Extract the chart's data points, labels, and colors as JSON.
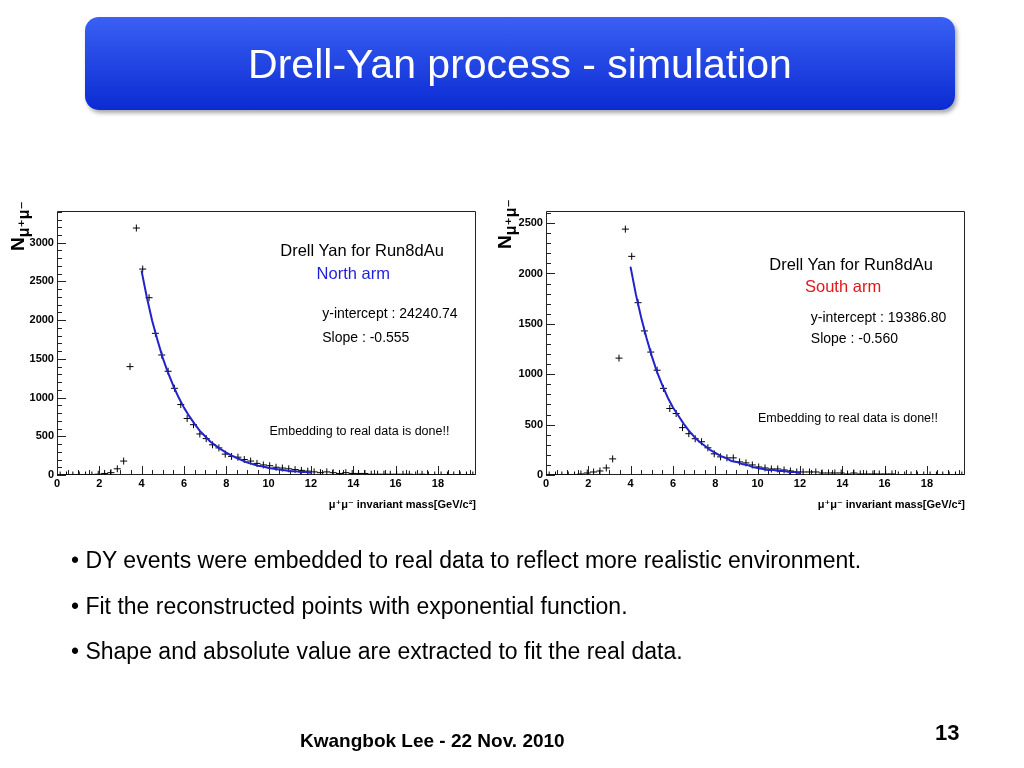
{
  "chart_data": [
    {
      "type": "other",
      "title": "Drell-Yan process - simulation"
    },
    {
      "type": "scatter",
      "title": "Drell Yan for Run8dAu",
      "subtitle": "North arm",
      "xlabel": "μ⁺μ⁻ invariant mass[GeV/c²]",
      "ylabel": "N$_{μ⁺μ⁻}$",
      "marker": "cross",
      "annotations": [
        "y-intercept : 24240.74",
        "Slope : -0.555",
        "Embedding to real data is done!!"
      ],
      "xlim": [
        0,
        19.8
      ],
      "ylim": [
        0,
        3410
      ],
      "xticks": [
        0,
        {
          "value": 0.5,
          "label": null
        },
        {
          "value": 1,
          "label": null
        },
        {
          "value": 1.5,
          "label": null
        },
        2,
        {
          "value": 2.5,
          "label": null
        },
        {
          "value": 3,
          "label": null
        },
        {
          "value": 3.5,
          "label": null
        },
        4,
        {
          "value": 4.5,
          "label": null
        },
        {
          "value": 5,
          "label": null
        },
        {
          "value": 5.5,
          "label": null
        },
        6,
        {
          "value": 6.5,
          "label": null
        },
        {
          "value": 7,
          "label": null
        },
        {
          "value": 7.5,
          "label": null
        },
        8,
        {
          "value": 8.5,
          "label": null
        },
        {
          "value": 9,
          "label": null
        },
        {
          "value": 9.5,
          "label": null
        },
        10,
        {
          "value": 10.5,
          "label": null
        },
        {
          "value": 11,
          "label": null
        },
        {
          "value": 11.5,
          "label": null
        },
        12,
        {
          "value": 12.5,
          "label": null
        },
        {
          "value": 13,
          "label": null
        },
        {
          "value": 13.5,
          "label": null
        },
        14,
        {
          "value": 14.5,
          "label": null
        },
        {
          "value": 15,
          "label": null
        },
        {
          "value": 15.5,
          "label": null
        },
        16,
        {
          "value": 16.5,
          "label": null
        },
        {
          "value": 17,
          "label": null
        },
        {
          "value": 17.5,
          "label": null
        },
        18,
        {
          "value": 18.5,
          "label": null
        },
        {
          "value": 19,
          "label": null
        },
        {
          "value": 19.5,
          "label": null
        }
      ],
      "yticks": [
        0,
        {
          "value": 100,
          "label": null
        },
        {
          "value": 200,
          "label": null
        },
        {
          "value": 300,
          "label": null
        },
        {
          "value": 400,
          "label": null
        },
        500,
        {
          "value": 600,
          "label": null
        },
        {
          "value": 700,
          "label": null
        },
        {
          "value": 800,
          "label": null
        },
        {
          "value": 900,
          "label": null
        },
        1000,
        {
          "value": 1100,
          "label": null
        },
        {
          "value": 1200,
          "label": null
        },
        {
          "value": 1300,
          "label": null
        },
        {
          "value": 1400,
          "label": null
        },
        1500,
        {
          "value": 1600,
          "label": null
        },
        {
          "value": 1700,
          "label": null
        },
        {
          "value": 1800,
          "label": null
        },
        {
          "value": 1900,
          "label": null
        },
        2000,
        {
          "value": 2100,
          "label": null
        },
        {
          "value": 2200,
          "label": null
        },
        {
          "value": 2300,
          "label": null
        },
        {
          "value": 2400,
          "label": null
        },
        2500,
        {
          "value": 2600,
          "label": null
        },
        {
          "value": 2700,
          "label": null
        },
        {
          "value": 2800,
          "label": null
        },
        {
          "value": 2900,
          "label": null
        },
        3000,
        {
          "value": 3100,
          "label": null
        },
        {
          "value": 3200,
          "label": null
        },
        {
          "value": 3300,
          "label": null
        },
        {
          "value": 3400,
          "label": null
        }
      ],
      "series": [
        {
          "color": "#000000",
          "x": [
            0.15,
            0.45,
            0.75,
            1.05,
            1.35,
            1.65,
            1.95,
            2.25,
            2.55,
            2.85,
            3.15,
            3.45,
            3.75,
            4.05,
            4.35,
            4.65,
            4.95,
            5.25,
            5.55,
            5.85,
            6.15,
            6.45,
            6.75,
            7.05,
            7.35,
            7.65,
            7.95,
            8.25,
            8.55,
            8.85,
            9.15,
            9.45,
            9.75,
            10.05,
            10.35,
            10.65,
            10.95,
            11.25,
            11.55,
            11.85,
            12.15,
            12.45,
            12.75,
            13.05,
            13.35,
            13.65,
            13.95,
            14.25,
            14.55,
            14.85,
            15.15,
            15.45,
            15.75,
            16.05,
            16.35,
            16.65,
            16.95,
            17.25,
            17.55,
            17.85,
            18.15,
            18.45,
            18.75,
            19.05,
            19.35,
            19.65
          ],
          "values": [
            0,
            0,
            0,
            0,
            0,
            0,
            10,
            20,
            30,
            80,
            180,
            1400,
            3190,
            2660,
            2290,
            1830,
            1550,
            1340,
            1120,
            910,
            730,
            650,
            530,
            470,
            390,
            350,
            270,
            240,
            230,
            200,
            180,
            150,
            130,
            120,
            100,
            90,
            80,
            70,
            60,
            50,
            40,
            30,
            40,
            30,
            20,
            30,
            20,
            20,
            20,
            10,
            10,
            10,
            10,
            10,
            10,
            10,
            0,
            10,
            0,
            0,
            0,
            0,
            0,
            0,
            0,
            0
          ]
        },
        {
          "type": "line",
          "color": "#2222cc",
          "marker": "none",
          "x": [
            4,
            4.25,
            4.5,
            4.75,
            5,
            5.25,
            5.5,
            5.75,
            6,
            6.25,
            6.5,
            6.75,
            7,
            7.25,
            7.5,
            7.75,
            8,
            8.25,
            8.5,
            8.75,
            9,
            9.25,
            9.5,
            9.75,
            10,
            10.25,
            10.5,
            10.75,
            11,
            11.25,
            11.5,
            11.75,
            12
          ],
          "values": [
            2630,
            2290,
            1990,
            1740,
            1510,
            1320,
            1150,
            1000,
            870,
            760,
            660,
            570,
            500,
            430,
            380,
            330,
            290,
            250,
            220,
            190,
            160,
            140,
            120,
            110,
            90,
            80,
            70,
            60,
            50,
            50,
            40,
            40,
            30
          ]
        }
      ]
    },
    {
      "type": "scatter",
      "title": "Drell Yan for Run8dAu",
      "subtitle": "South arm",
      "xlabel": "μ⁺μ⁻ invariant mass[GeV/c²]",
      "ylabel": "N$_{μ⁺μ⁻}$",
      "marker": "cross",
      "annotations": [
        "y-intercept : 19386.80",
        "Slope : -0.560",
        "Embedding to real data is done!!"
      ],
      "xlim": [
        0,
        19.8
      ],
      "ylim": [
        0,
        2620
      ],
      "xticks": [
        0,
        {
          "value": 0.5,
          "label": null
        },
        {
          "value": 1,
          "label": null
        },
        {
          "value": 1.5,
          "label": null
        },
        2,
        {
          "value": 2.5,
          "label": null
        },
        {
          "value": 3,
          "label": null
        },
        {
          "value": 3.5,
          "label": null
        },
        4,
        {
          "value": 4.5,
          "label": null
        },
        {
          "value": 5,
          "label": null
        },
        {
          "value": 5.5,
          "label": null
        },
        6,
        {
          "value": 6.5,
          "label": null
        },
        {
          "value": 7,
          "label": null
        },
        {
          "value": 7.5,
          "label": null
        },
        8,
        {
          "value": 8.5,
          "label": null
        },
        {
          "value": 9,
          "label": null
        },
        {
          "value": 9.5,
          "label": null
        },
        10,
        {
          "value": 10.5,
          "label": null
        },
        {
          "value": 11,
          "label": null
        },
        {
          "value": 11.5,
          "label": null
        },
        12,
        {
          "value": 12.5,
          "label": null
        },
        {
          "value": 13,
          "label": null
        },
        {
          "value": 13.5,
          "label": null
        },
        14,
        {
          "value": 14.5,
          "label": null
        },
        {
          "value": 15,
          "label": null
        },
        {
          "value": 15.5,
          "label": null
        },
        16,
        {
          "value": 16.5,
          "label": null
        },
        {
          "value": 17,
          "label": null
        },
        {
          "value": 17.5,
          "label": null
        },
        18,
        {
          "value": 18.5,
          "label": null
        },
        {
          "value": 19,
          "label": null
        },
        {
          "value": 19.5,
          "label": null
        }
      ],
      "yticks": [
        0,
        {
          "value": 100,
          "label": null
        },
        {
          "value": 200,
          "label": null
        },
        {
          "value": 300,
          "label": null
        },
        {
          "value": 400,
          "label": null
        },
        500,
        {
          "value": 600,
          "label": null
        },
        {
          "value": 700,
          "label": null
        },
        {
          "value": 800,
          "label": null
        },
        {
          "value": 900,
          "label": null
        },
        1000,
        {
          "value": 1100,
          "label": null
        },
        {
          "value": 1200,
          "label": null
        },
        {
          "value": 1300,
          "label": null
        },
        {
          "value": 1400,
          "label": null
        },
        1500,
        {
          "value": 1600,
          "label": null
        },
        {
          "value": 1700,
          "label": null
        },
        {
          "value": 1800,
          "label": null
        },
        {
          "value": 1900,
          "label": null
        },
        2000,
        {
          "value": 2100,
          "label": null
        },
        {
          "value": 2200,
          "label": null
        },
        {
          "value": 2300,
          "label": null
        },
        {
          "value": 2400,
          "label": null
        },
        2500,
        {
          "value": 2600,
          "label": null
        }
      ],
      "series": [
        {
          "color": "#000000",
          "x": [
            0.15,
            0.45,
            0.75,
            1.05,
            1.35,
            1.65,
            1.95,
            2.25,
            2.55,
            2.85,
            3.15,
            3.45,
            3.75,
            4.05,
            4.35,
            4.65,
            4.95,
            5.25,
            5.55,
            5.85,
            6.15,
            6.45,
            6.75,
            7.05,
            7.35,
            7.65,
            7.95,
            8.25,
            8.55,
            8.85,
            9.15,
            9.45,
            9.75,
            10.05,
            10.35,
            10.65,
            10.95,
            11.25,
            11.55,
            11.85,
            12.15,
            12.45,
            12.75,
            13.05,
            13.35,
            13.65,
            13.95,
            14.25,
            14.55,
            14.85,
            15.15,
            15.45,
            15.75,
            16.05,
            16.35,
            16.65,
            16.95,
            17.25,
            17.55,
            17.85,
            18.15,
            18.45,
            18.75,
            19.05,
            19.35,
            19.65
          ],
          "values": [
            0,
            0,
            0,
            0,
            0,
            10,
            20,
            30,
            40,
            70,
            160,
            1160,
            2440,
            2170,
            1710,
            1430,
            1220,
            1040,
            860,
            660,
            610,
            470,
            410,
            360,
            330,
            270,
            210,
            180,
            170,
            170,
            130,
            120,
            100,
            80,
            70,
            60,
            60,
            50,
            40,
            30,
            30,
            30,
            30,
            20,
            20,
            20,
            20,
            10,
            20,
            10,
            10,
            10,
            10,
            10,
            10,
            0,
            0,
            0,
            0,
            0,
            0,
            0,
            0,
            0,
            0,
            0
          ]
        },
        {
          "type": "line",
          "color": "#2222cc",
          "marker": "none",
          "x": [
            4,
            4.25,
            4.5,
            4.75,
            5,
            5.25,
            5.5,
            5.75,
            6,
            6.25,
            6.5,
            6.75,
            7,
            7.25,
            7.5,
            7.75,
            8,
            8.25,
            8.5,
            8.75,
            9,
            9.25,
            9.5,
            9.75,
            10,
            10.25,
            10.5,
            10.75,
            11,
            11.25,
            11.5,
            11.75,
            12
          ],
          "values": [
            2060,
            1790,
            1560,
            1360,
            1180,
            1020,
            890,
            770,
            670,
            590,
            510,
            440,
            380,
            330,
            290,
            250,
            220,
            190,
            170,
            140,
            130,
            110,
            100,
            80,
            70,
            60,
            50,
            50,
            40,
            40,
            30,
            30,
            20
          ]
        }
      ]
    },
    {
      "type": "other",
      "annotations": [
        "• DY events were embedded to real data to reflect more realistic environment.",
        "• Fit the reconstructed points with exponential function.",
        "• Shape and absolute value are extracted to fit the real data."
      ]
    },
    {
      "type": "other",
      "annotations": [
        "Kwangbok Lee - 22 Nov. 2010",
        "13"
      ]
    }
  ]
}
